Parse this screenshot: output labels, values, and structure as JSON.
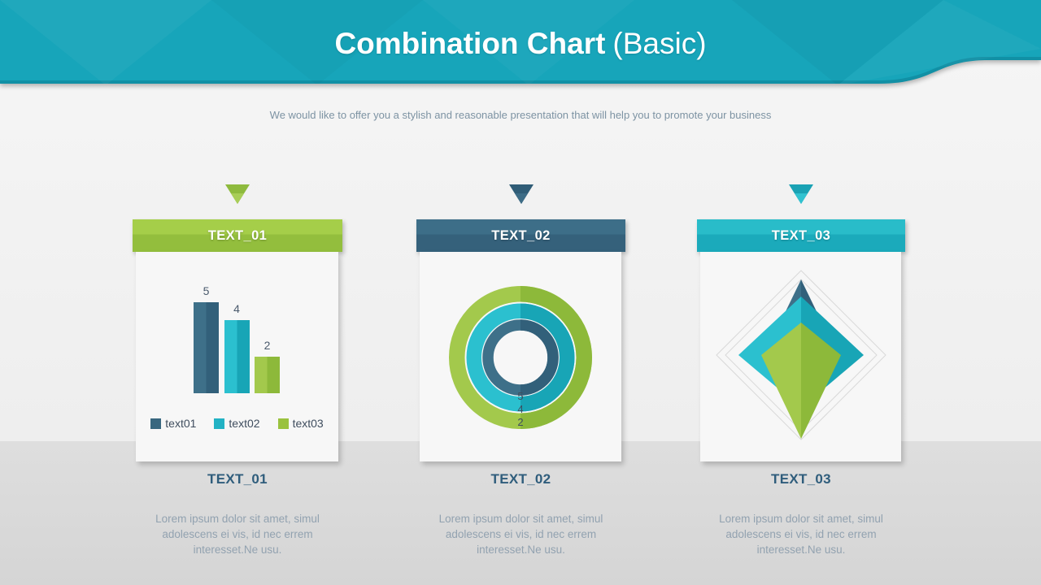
{
  "header": {
    "title_bold": "Combination Chart",
    "title_light": "(Basic)",
    "subtitle": "We would like to offer you a stylish and reasonable presentation that will help you to promote your business",
    "colors": {
      "banner": "#17a5ba",
      "banner_edge": "#1190a5"
    }
  },
  "palette": {
    "text01": {
      "light": "#3e7089",
      "mid": "#38677f",
      "dark": "#32607a"
    },
    "text02": {
      "light": "#2bc0cf",
      "mid": "#22b2c4",
      "dark": "#18a5b6"
    },
    "text03": {
      "light": "#a3c94c",
      "mid": "#9ac23e",
      "dark": "#8db93a"
    }
  },
  "panels": [
    {
      "header_label": "TEXT_01",
      "footer_title": "TEXT_01",
      "footer_text": "Lorem ipsum dolor sit amet, simul adolescens ei vis, id nec errem interesset.Ne usu.",
      "colors": {
        "header_top": "#a5ce49",
        "header_bottom": "#93be3d",
        "arrow_dark": "#8eba3e",
        "arrow_light": "#a8cd57"
      }
    },
    {
      "header_label": "TEXT_02",
      "footer_title": "TEXT_02",
      "footer_text": "Lorem ipsum dolor sit amet, simul adolescens ei vis, id nec errem interesset.Ne usu.",
      "colors": {
        "header_top": "#3d6e88",
        "header_bottom": "#35617b",
        "arrow_dark": "#305d77",
        "arrow_light": "#3d6c86"
      }
    },
    {
      "header_label": "TEXT_03",
      "footer_title": "TEXT_03",
      "footer_text": "Lorem ipsum dolor sit amet, simul adolescens ei vis, id nec errem interesset.Ne usu.",
      "colors": {
        "header_top": "#29bcc9",
        "header_bottom": "#1baabb",
        "arrow_dark": "#1aa2b4",
        "arrow_light": "#31c2d0"
      }
    }
  ],
  "chart_data": [
    {
      "type": "bar",
      "panel": "TEXT_01",
      "categories": [
        "text01",
        "text02",
        "text03"
      ],
      "values": [
        5,
        4,
        2
      ],
      "data_labels": [
        "5",
        "4",
        "2"
      ],
      "ylim": [
        0,
        5
      ],
      "grid": false,
      "legend_position": "bottom"
    },
    {
      "type": "donut",
      "panel": "TEXT_02",
      "rings": [
        {
          "name": "text01",
          "value": 5,
          "position": "inner"
        },
        {
          "name": "text02",
          "value": 4,
          "position": "middle"
        },
        {
          "name": "text03",
          "value": 2,
          "position": "outer"
        }
      ],
      "value_labels_stacked_bottom": [
        "5",
        "4",
        "2"
      ]
    },
    {
      "type": "radar",
      "panel": "TEXT_03",
      "axes": [
        "top",
        "right",
        "bottom",
        "left"
      ],
      "grid_levels": [
        5.2,
        4.65
      ],
      "series": [
        {
          "name": "text01",
          "values": [
            4.65,
            2.25,
            2.25,
            2.25
          ]
        },
        {
          "name": "text02",
          "values": [
            3.6,
            3.85,
            3.25,
            3.85
          ]
        },
        {
          "name": "text03",
          "values": [
            2.0,
            2.45,
            5.15,
            2.45
          ]
        }
      ]
    }
  ]
}
